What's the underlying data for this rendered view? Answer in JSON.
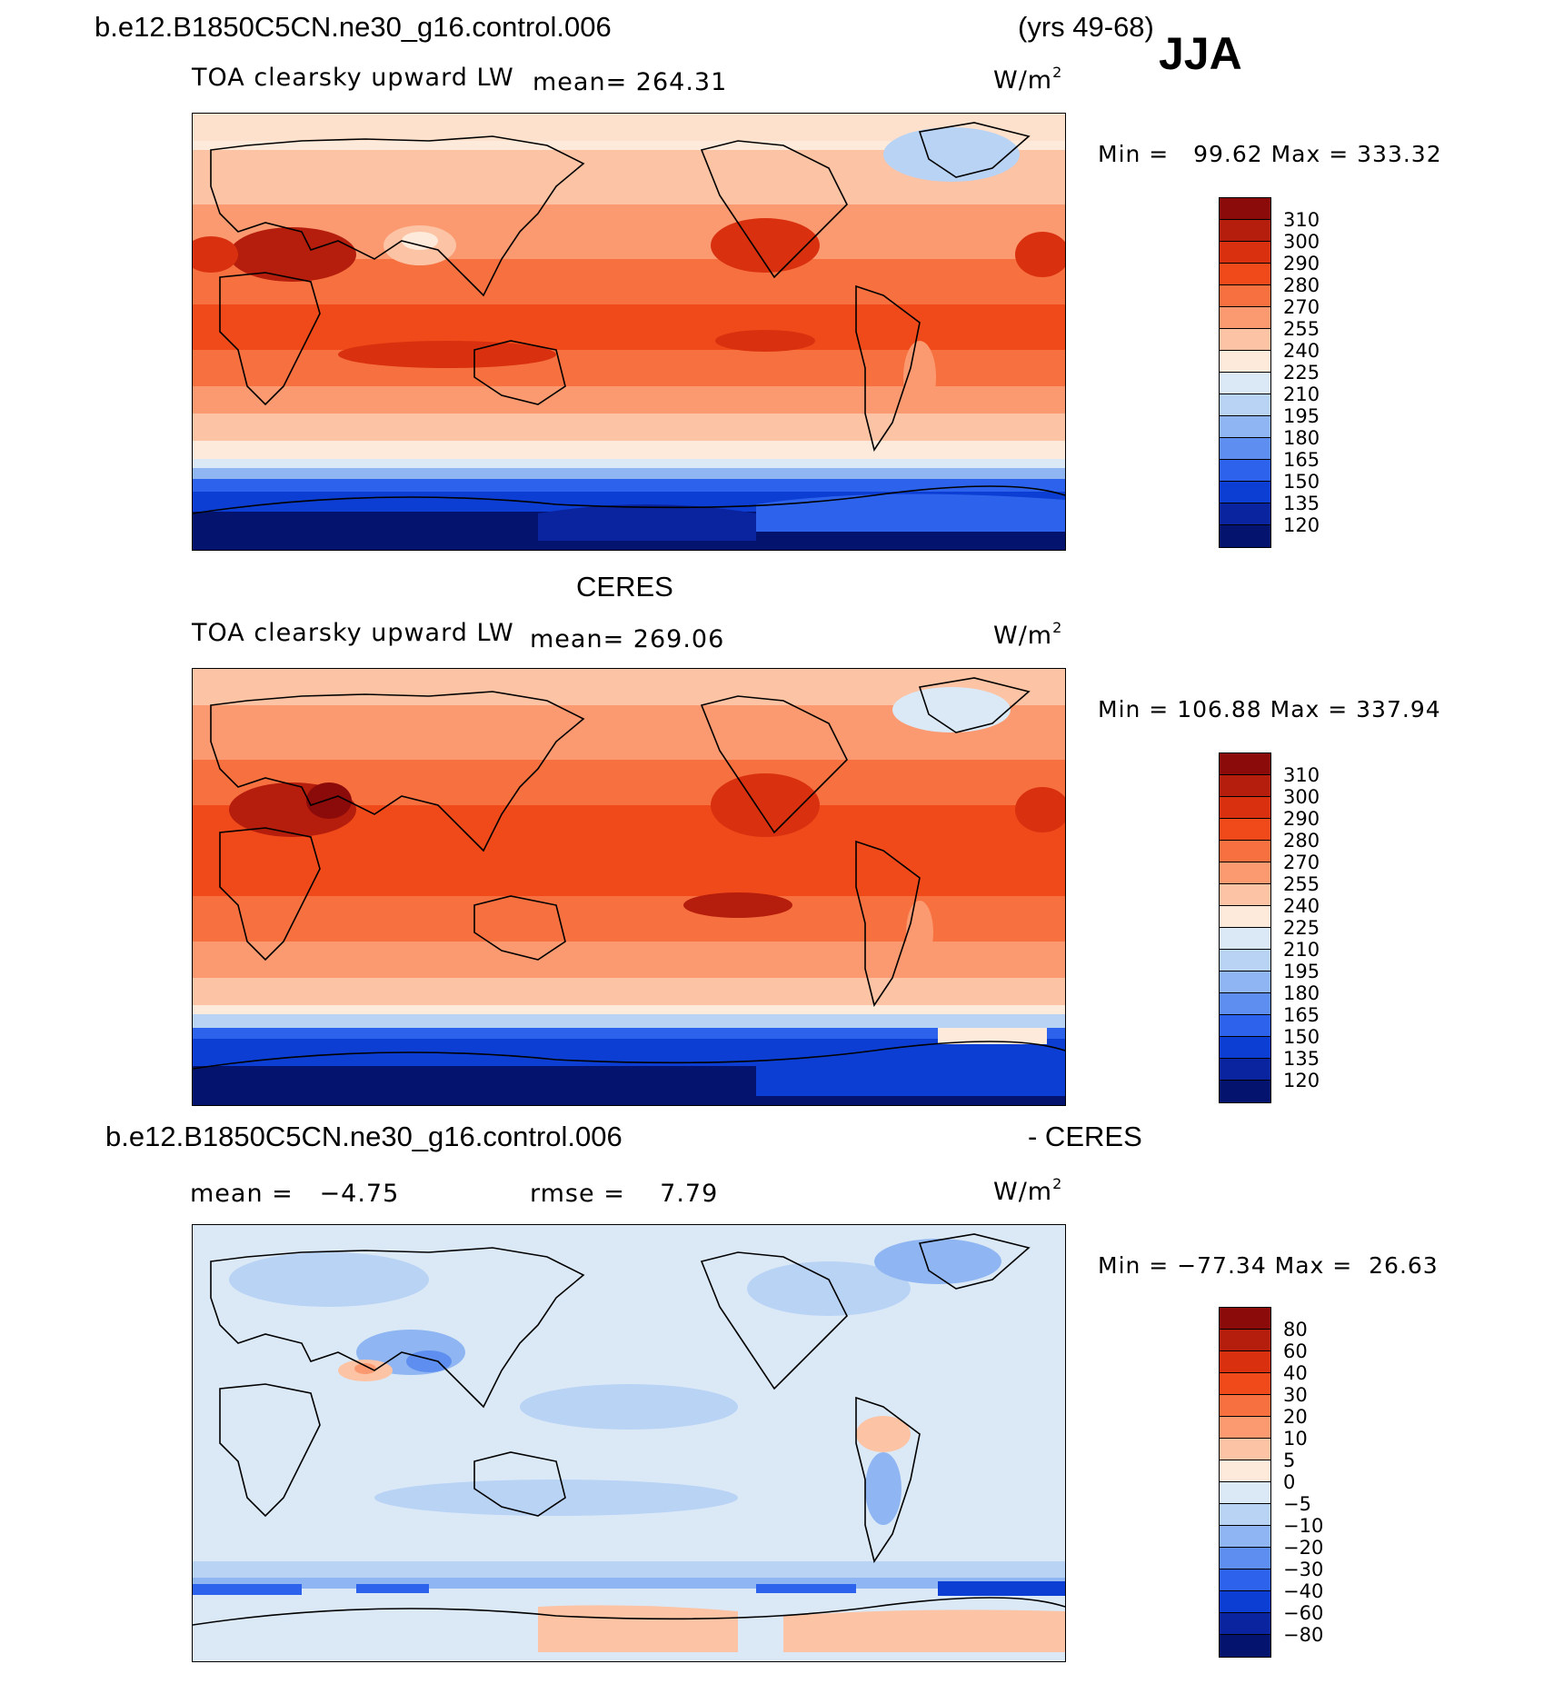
{
  "header": {
    "case_name": "b.e12.B1850C5CN.ne30_g16.control.006",
    "years": "(yrs 49-68)",
    "season": "JJA"
  },
  "panel1": {
    "variable": "TOA clearsky upward LW",
    "mean_label": "mean= ",
    "mean": "264.31",
    "units": "W/m",
    "units_exp": "2",
    "minmax": "Min =   99.62 Max = 333.32"
  },
  "panel2": {
    "dataset": "CERES",
    "variable": "TOA clearsky upward LW",
    "mean_label": "mean= ",
    "mean": "269.06",
    "units": "W/m",
    "units_exp": "2",
    "minmax": "Min = 106.88 Max = 337.94"
  },
  "panel3": {
    "case_name": "b.e12.B1850C5CN.ne30_g16.control.006",
    "minus_label": "- CERES",
    "mean_text": "mean =   −4.75",
    "rmse_text": "rmse =    7.79",
    "units": "W/m",
    "units_exp": "2",
    "minmax": "Min = −77.34 Max =  26.63"
  },
  "colorbar_abs": {
    "labels": [
      "310",
      "300",
      "290",
      "280",
      "270",
      "255",
      "240",
      "225",
      "210",
      "195",
      "180",
      "165",
      "150",
      "135",
      "120"
    ],
    "colors": [
      "#8b0a0a",
      "#b51d0c",
      "#d9310f",
      "#f04a1a",
      "#f77040",
      "#fb9a70",
      "#fcc3a4",
      "#fdeada",
      "#dbe9f7",
      "#b9d3f5",
      "#8fb6f2",
      "#5e8ff0",
      "#2d63ec",
      "#0d3ed4",
      "#0a249f",
      "#04146e"
    ]
  },
  "colorbar_diff": {
    "labels": [
      "80",
      "60",
      "40",
      "30",
      "20",
      "10",
      "5",
      "0",
      "−5",
      "−10",
      "−20",
      "−30",
      "−40",
      "−60",
      "−80"
    ],
    "colors": [
      "#8b0a0a",
      "#b51d0c",
      "#d9310f",
      "#f04a1a",
      "#f77040",
      "#fb9a70",
      "#fcc3a4",
      "#fdeada",
      "#dbe9f7",
      "#b9d3f5",
      "#8fb6f2",
      "#5e8ff0",
      "#2d63ec",
      "#0d3ed4",
      "#0a249f",
      "#04146e"
    ]
  }
}
